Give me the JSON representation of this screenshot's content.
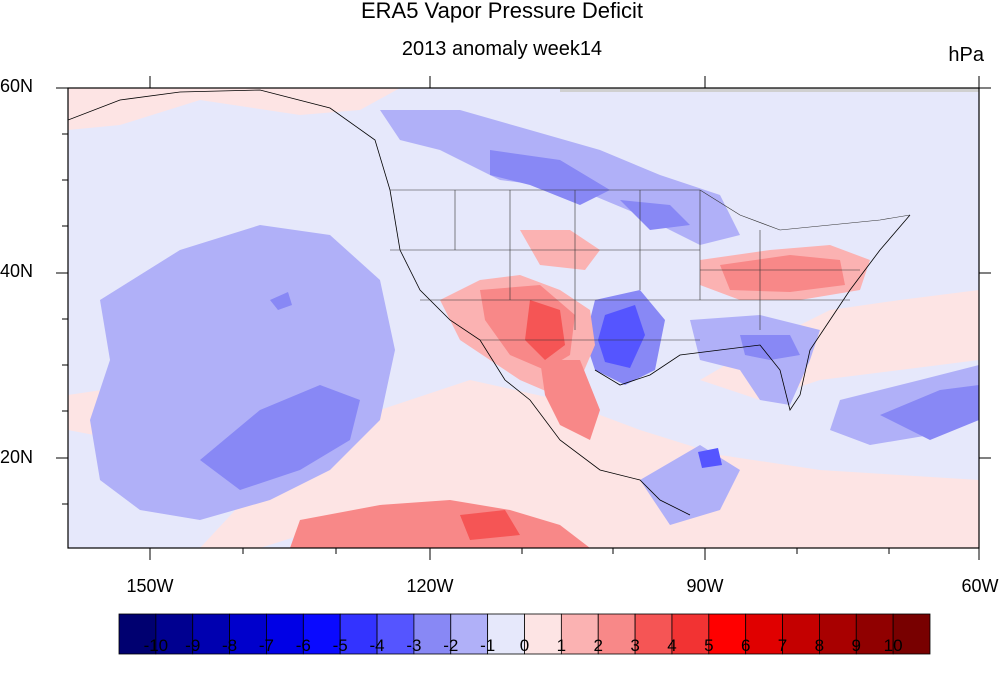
{
  "title": "ERA5 Vapor Pressure Deficit",
  "subtitle": "2013 anomaly week14",
  "units": "hPa",
  "map": {
    "lat_range": [
      10,
      60
    ],
    "lon_range": [
      -160,
      -60
    ],
    "lat_labels": [
      "60N",
      "40N",
      "20N"
    ],
    "lon_labels": [
      "150W",
      "120W",
      "90W",
      "60W"
    ]
  },
  "colorbar": {
    "labels": [
      "-10",
      "-9",
      "-8",
      "-7",
      "-6",
      "-5",
      "-4",
      "-3",
      "-2",
      "-1",
      "0",
      "1",
      "2",
      "3",
      "4",
      "5",
      "6",
      "7",
      "8",
      "9",
      "10"
    ],
    "colors": [
      "#000070",
      "#000090",
      "#0000b0",
      "#0000cc",
      "#0000e6",
      "#0a0aff",
      "#3333ff",
      "#5555ff",
      "#8888f5",
      "#b0b0f8",
      "#e6e8fb",
      "#fde4e4",
      "#fbb2b2",
      "#f88888",
      "#f55555",
      "#f23333",
      "#ff0000",
      "#e00000",
      "#c40000",
      "#a80000",
      "#900000",
      "#780000"
    ]
  }
}
